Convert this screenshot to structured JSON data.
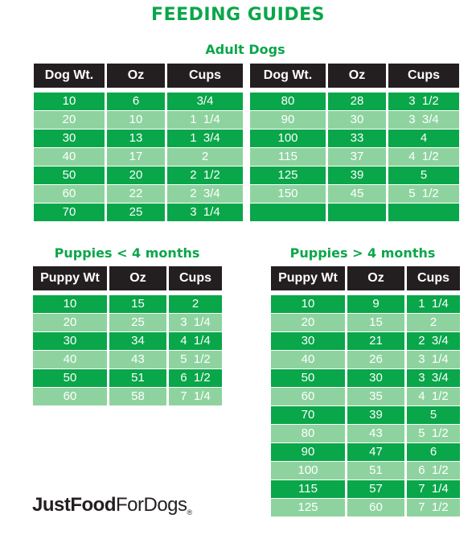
{
  "title": "FEEDING GUIDES",
  "adult": {
    "title": "Adult Dogs",
    "left": {
      "headers": [
        "Dog Wt.",
        "Oz",
        "Cups"
      ],
      "rows": [
        [
          "10",
          "6",
          "3/4"
        ],
        [
          "20",
          "10",
          "1  1/4"
        ],
        [
          "30",
          "13",
          "1  3/4"
        ],
        [
          "40",
          "17",
          "2"
        ],
        [
          "50",
          "20",
          "2  1/2"
        ],
        [
          "60",
          "22",
          "2  3/4"
        ],
        [
          "70",
          "25",
          "3  1/4"
        ]
      ]
    },
    "right": {
      "headers": [
        "Dog Wt.",
        "Oz",
        "Cups"
      ],
      "rows": [
        [
          "80",
          "28",
          "3  1/2"
        ],
        [
          "90",
          "30",
          "3  3/4"
        ],
        [
          "100",
          "33",
          "4"
        ],
        [
          "115",
          "37",
          "4  1/2"
        ],
        [
          "125",
          "39",
          "5"
        ],
        [
          "150",
          "45",
          "5  1/2"
        ],
        [
          "",
          "",
          ""
        ]
      ]
    }
  },
  "puppies_under": {
    "title": "Puppies < 4 months",
    "headers": [
      "Puppy Wt",
      "Oz",
      "Cups"
    ],
    "rows": [
      [
        "10",
        "15",
        "2"
      ],
      [
        "20",
        "25",
        "3  1/4"
      ],
      [
        "30",
        "34",
        "4  1/4"
      ],
      [
        "40",
        "43",
        "5  1/2"
      ],
      [
        "50",
        "51",
        "6  1/2"
      ],
      [
        "60",
        "58",
        "7  1/4"
      ]
    ]
  },
  "puppies_over": {
    "title": "Puppies > 4 months",
    "headers": [
      "Puppy Wt",
      "Oz",
      "Cups"
    ],
    "rows": [
      [
        "10",
        "9",
        "1  1/4"
      ],
      [
        "20",
        "15",
        "2"
      ],
      [
        "30",
        "21",
        "2  3/4"
      ],
      [
        "40",
        "26",
        "3  1/4"
      ],
      [
        "50",
        "30",
        "3  3/4"
      ],
      [
        "60",
        "35",
        "4  1/2"
      ],
      [
        "70",
        "39",
        "5"
      ],
      [
        "80",
        "43",
        "5  1/2"
      ],
      [
        "90",
        "47",
        "6"
      ],
      [
        "100",
        "51",
        "6  1/2"
      ],
      [
        "115",
        "57",
        "7  1/4"
      ],
      [
        "125",
        "60",
        "7  1/2"
      ]
    ]
  },
  "logo": {
    "part1": "Just",
    "part2": "Food",
    "part3": "ForDogs",
    "mark": "®"
  },
  "colors": {
    "green": "#0aa64a",
    "light_green": "#8ed39f",
    "header": "#231f20"
  }
}
